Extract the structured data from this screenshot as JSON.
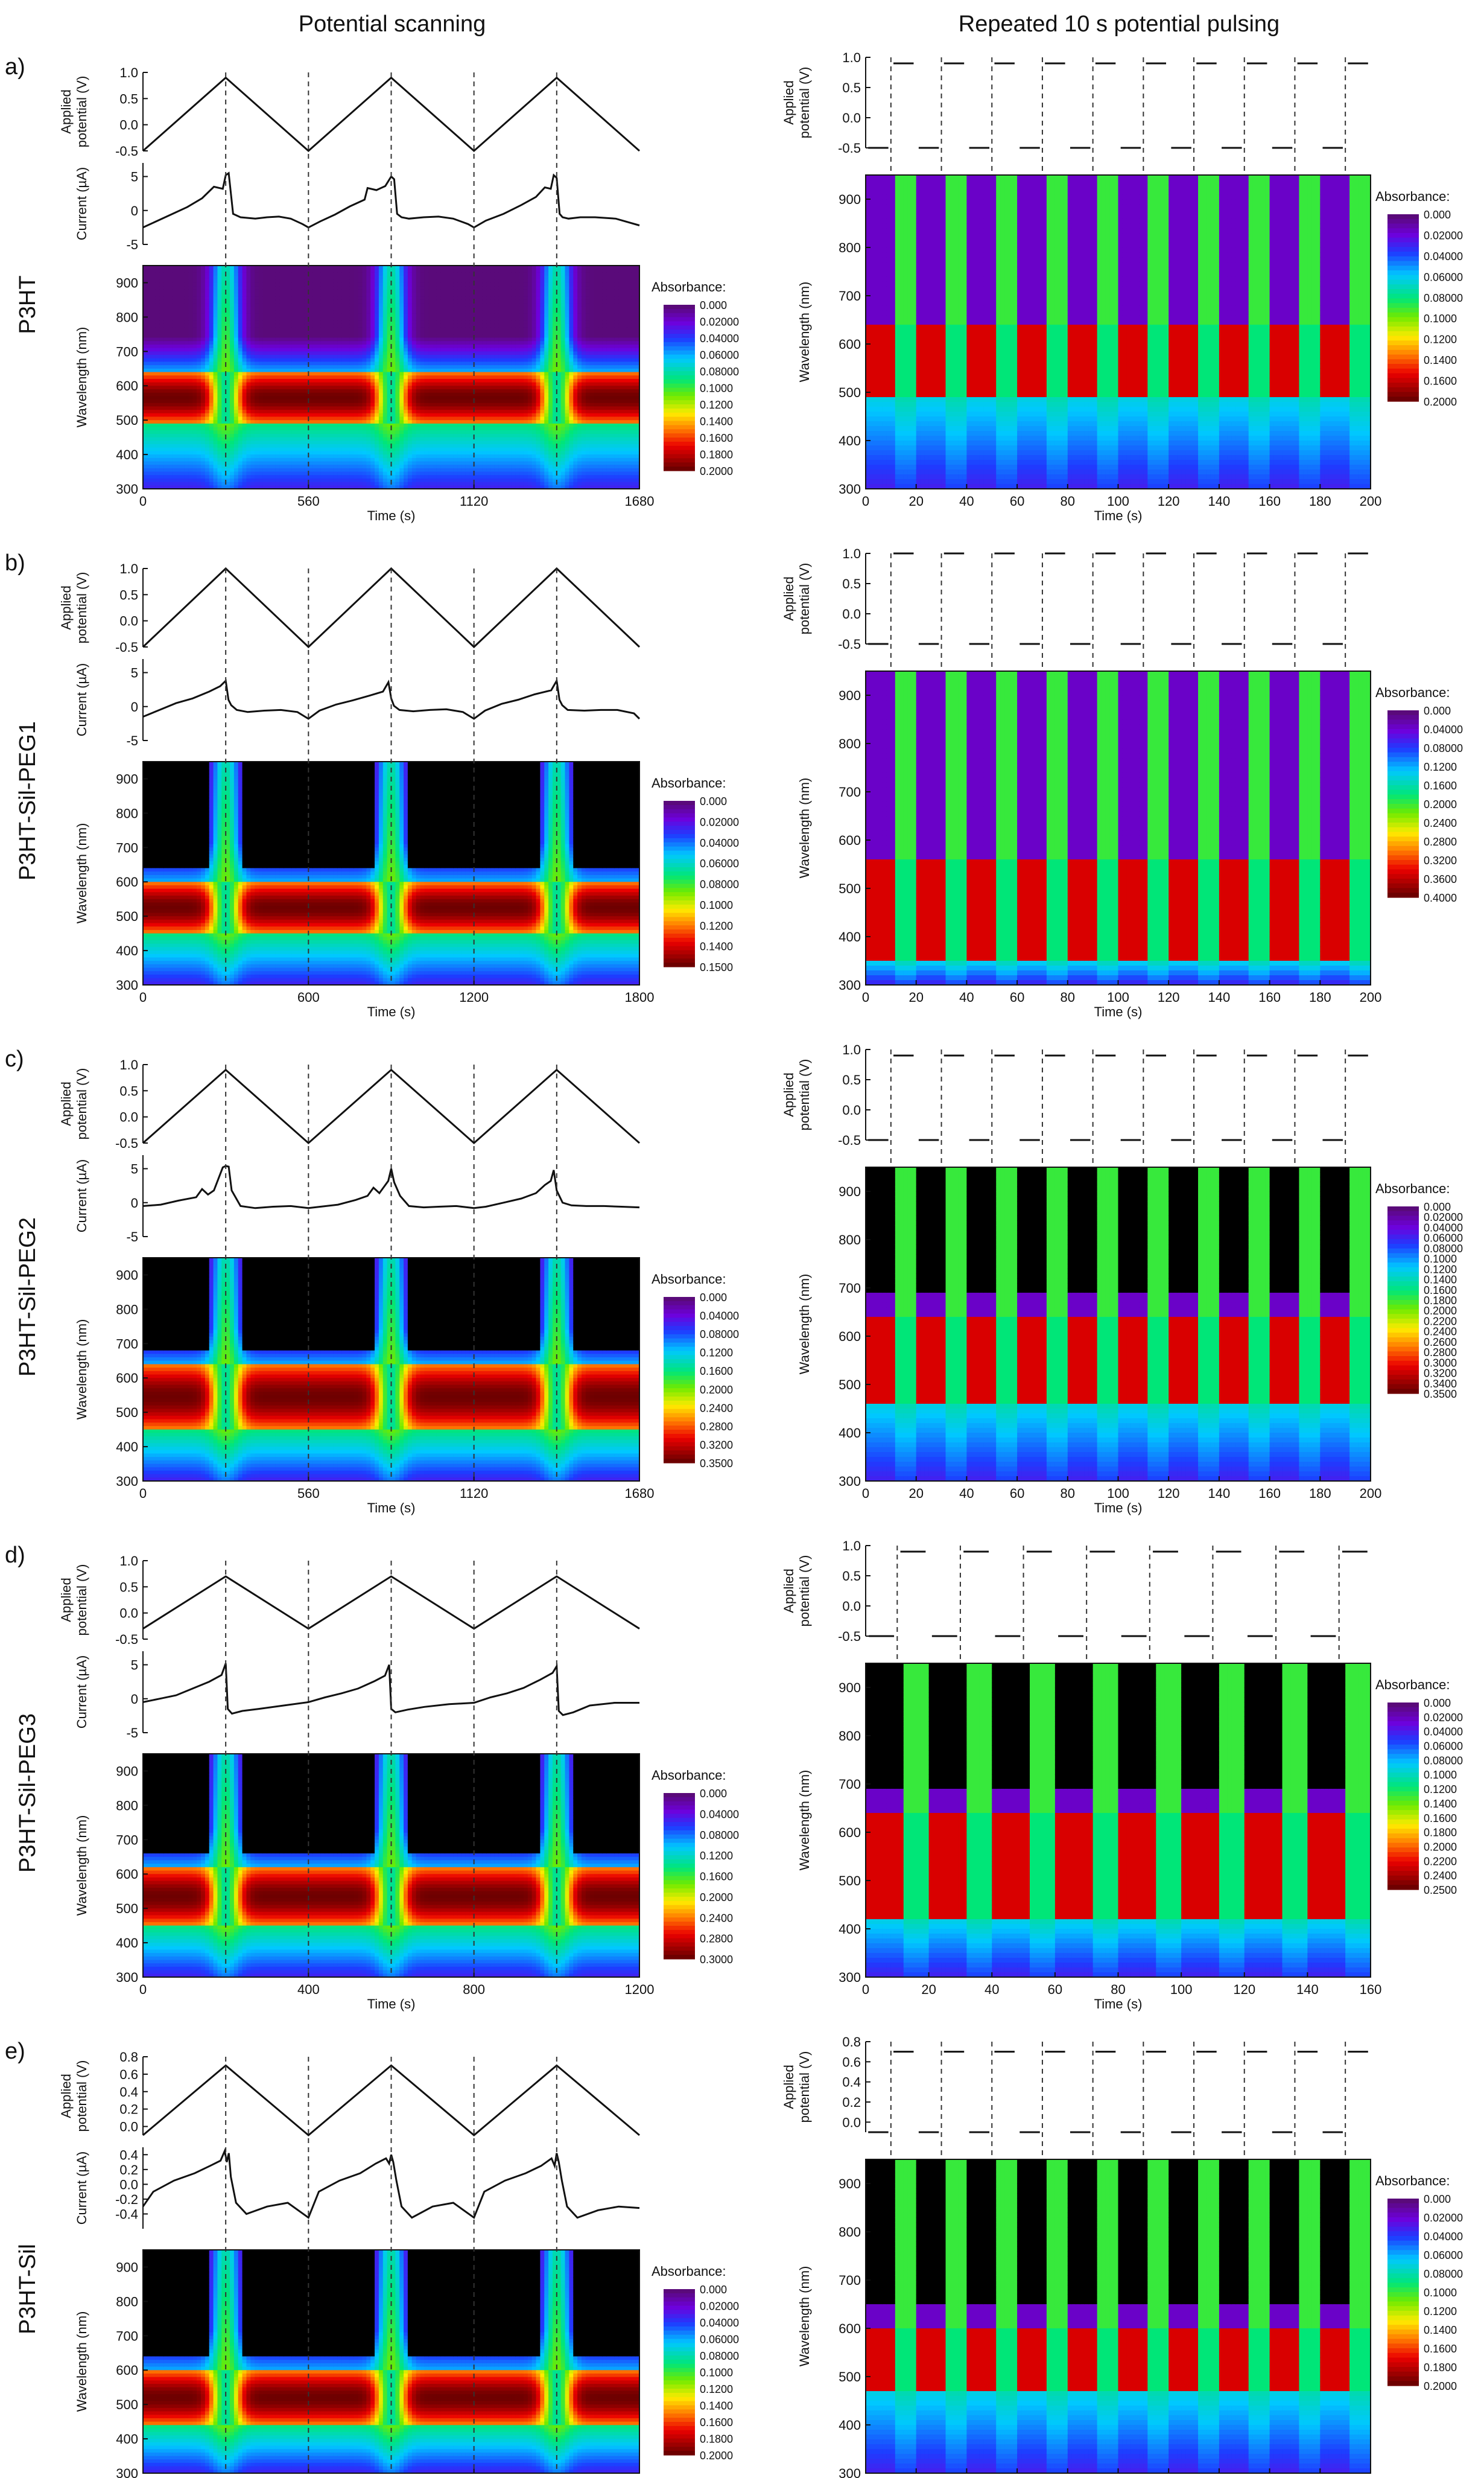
{
  "headers": {
    "left": "Potential scanning",
    "right": "Repeated 10 s potential pulsing"
  },
  "panels": [
    {
      "letter": "a)",
      "sample": "P3HT",
      "scan": {
        "t_max": 1680,
        "xticks": [
          0,
          560,
          1120,
          1680
        ],
        "v_min": -0.5,
        "v_max": 0.9,
        "v_ylim": [
          -0.5,
          1.0
        ],
        "v_yticks": [
          -0.5,
          0.0,
          0.5,
          1.0
        ],
        "i_ylim": [
          -5,
          7
        ],
        "i_yticks": [
          -5,
          0,
          5
        ],
        "current_trace": {
          "t": [
            0,
            50,
            100,
            150,
            200,
            240,
            270,
            280,
            290,
            305,
            330,
            380,
            420,
            460,
            500,
            540,
            560,
            600,
            650,
            700,
            750,
            760,
            790,
            820,
            840,
            850,
            860,
            875,
            900,
            950,
            1000,
            1050,
            1100,
            1120,
            1160,
            1220,
            1280,
            1330,
            1360,
            1380,
            1390,
            1400,
            1410,
            1420,
            1440,
            1480,
            1530,
            1600,
            1680
          ],
          "i": [
            -2.5,
            -1.5,
            -0.5,
            0.5,
            1.8,
            3.5,
            3.2,
            5.2,
            5.5,
            -0.5,
            -1.0,
            -1.2,
            -1.0,
            -0.9,
            -1.2,
            -2.0,
            -2.5,
            -1.6,
            -0.6,
            0.6,
            1.6,
            3.3,
            3.0,
            3.6,
            5.0,
            4.6,
            -0.5,
            -1.0,
            -1.2,
            -1.0,
            -0.9,
            -1.2,
            -2.0,
            -2.5,
            -1.5,
            -0.5,
            0.8,
            2.0,
            3.4,
            3.2,
            5.2,
            4.8,
            -0.5,
            -1.0,
            -1.2,
            -1.0,
            -1.0,
            -1.2,
            -2.2
          ]
        },
        "cb_max": 0.2,
        "cb_labels": [
          "0.000",
          "0.02000",
          "0.04000",
          "0.06000",
          "0.08000",
          "0.1000",
          "0.1200",
          "0.1400",
          "0.1600",
          "0.1800",
          "0.2000"
        ],
        "heatmap": {
          "bleach_band_nm": [
            490,
            640
          ],
          "blank_above": false
        }
      },
      "pulse": {
        "t_max": 200,
        "n_pulses": 10,
        "v_high": 0.9,
        "v_low": -0.5,
        "v_ylim": [
          -0.5,
          1.0
        ],
        "v_yticks": [
          -0.5,
          0.0,
          0.5,
          1.0
        ],
        "cb_max": 0.2,
        "cb_labels": [
          "0.000",
          "0.02000",
          "0.04000",
          "0.06000",
          "0.08000",
          "0.1000",
          "0.1200",
          "0.1400",
          "0.1600",
          "0.2000"
        ],
        "heatmap": {
          "bleach_band_nm": [
            490,
            640
          ],
          "blank_above": false
        }
      }
    },
    {
      "letter": "b)",
      "sample": "P3HT-Sil-PEG1",
      "scan": {
        "t_max": 1800,
        "xticks": [
          0,
          600,
          1200,
          1800
        ],
        "v_min": -0.5,
        "v_max": 1.0,
        "v_ylim": [
          -0.5,
          1.0
        ],
        "v_yticks": [
          -0.5,
          0.0,
          0.5,
          1.0
        ],
        "i_ylim": [
          -5,
          7
        ],
        "i_yticks": [
          -5,
          0,
          5
        ],
        "current_trace": {
          "t": [
            0,
            60,
            120,
            180,
            240,
            280,
            300,
            310,
            320,
            340,
            380,
            440,
            500,
            560,
            600,
            640,
            700,
            760,
            820,
            870,
            890,
            900,
            910,
            930,
            980,
            1040,
            1100,
            1160,
            1200,
            1240,
            1300,
            1360,
            1420,
            1480,
            1500,
            1510,
            1520,
            1540,
            1600,
            1660,
            1720,
            1780,
            1800
          ],
          "i": [
            -1.5,
            -0.5,
            0.5,
            1.2,
            2.2,
            3.0,
            3.8,
            1.0,
            0.2,
            -0.5,
            -0.8,
            -0.6,
            -0.5,
            -0.8,
            -1.8,
            -0.6,
            0.3,
            0.9,
            1.6,
            2.2,
            3.6,
            1.2,
            0.1,
            -0.5,
            -0.7,
            -0.5,
            -0.4,
            -0.8,
            -1.8,
            -0.6,
            0.4,
            1.0,
            1.8,
            2.4,
            3.8,
            1.0,
            0.2,
            -0.5,
            -0.6,
            -0.5,
            -0.5,
            -1.0,
            -1.8
          ]
        },
        "cb_max": 0.15,
        "cb_labels": [
          "0.000",
          "0.02000",
          "0.04000",
          "0.06000",
          "0.08000",
          "0.1000",
          "0.1200",
          "0.1400",
          "0.1500"
        ],
        "heatmap": {
          "bleach_band_nm": [
            450,
            600
          ],
          "blank_above": true
        }
      },
      "pulse": {
        "t_max": 200,
        "n_pulses": 10,
        "v_high": 1.0,
        "v_low": -0.5,
        "v_ylim": [
          -0.5,
          1.0
        ],
        "v_yticks": [
          -0.5,
          0.0,
          0.5,
          1.0
        ],
        "cb_max": 0.4,
        "cb_labels": [
          "0.000",
          "0.04000",
          "0.08000",
          "0.1200",
          "0.1600",
          "0.2000",
          "0.2400",
          "0.2800",
          "0.3200",
          "0.3600",
          "0.4000"
        ],
        "heatmap": {
          "bleach_band_nm": [
            350,
            560
          ],
          "blank_above": false
        }
      }
    },
    {
      "letter": "c)",
      "sample": "P3HT-Sil-PEG2",
      "scan": {
        "t_max": 1680,
        "xticks": [
          0,
          560,
          1120,
          1680
        ],
        "v_min": -0.5,
        "v_max": 0.9,
        "v_ylim": [
          -0.5,
          1.0
        ],
        "v_yticks": [
          -0.5,
          0.0,
          0.5,
          1.0
        ],
        "i_ylim": [
          -5,
          7
        ],
        "i_yticks": [
          -5,
          0,
          5
        ],
        "current_trace": {
          "t": [
            0,
            60,
            120,
            180,
            200,
            220,
            240,
            270,
            280,
            290,
            300,
            330,
            380,
            440,
            500,
            560,
            600,
            660,
            720,
            760,
            780,
            800,
            830,
            840,
            850,
            870,
            900,
            950,
            1000,
            1060,
            1120,
            1160,
            1220,
            1280,
            1330,
            1360,
            1380,
            1390,
            1400,
            1420,
            1450,
            1500,
            1560,
            1620,
            1680
          ],
          "i": [
            -0.5,
            -0.3,
            0.3,
            0.8,
            2.0,
            1.2,
            1.8,
            5.2,
            5.4,
            5.3,
            1.8,
            -0.5,
            -0.8,
            -0.6,
            -0.5,
            -0.8,
            -0.6,
            -0.3,
            0.4,
            1.0,
            2.2,
            1.4,
            3.2,
            5.0,
            3.0,
            1.0,
            -0.5,
            -0.7,
            -0.6,
            -0.5,
            -0.8,
            -0.6,
            0.0,
            0.6,
            1.4,
            2.6,
            3.2,
            4.8,
            1.8,
            0.0,
            -0.4,
            -0.5,
            -0.5,
            -0.6,
            -0.7
          ]
        },
        "cb_max": 0.35,
        "cb_labels": [
          "0.000",
          "0.04000",
          "0.08000",
          "0.1200",
          "0.1600",
          "0.2000",
          "0.2400",
          "0.2800",
          "0.3200",
          "0.3500"
        ],
        "heatmap": {
          "bleach_band_nm": [
            450,
            640
          ],
          "blank_above": true
        }
      },
      "pulse": {
        "t_max": 200,
        "n_pulses": 10,
        "v_high": 0.9,
        "v_low": -0.5,
        "v_ylim": [
          -0.5,
          1.0
        ],
        "v_yticks": [
          -0.5,
          0.0,
          0.5,
          1.0
        ],
        "cb_max": 0.35,
        "cb_labels": [
          "0.000",
          "0.02000",
          "0.04000",
          "0.06000",
          "0.08000",
          "0.1000",
          "0.1200",
          "0.1400",
          "0.1600",
          "0.1800",
          "0.2000",
          "0.2200",
          "0.2400",
          "0.2600",
          "0.2800",
          "0.3000",
          "0.3200",
          "0.3400",
          "0.3500"
        ],
        "heatmap": {
          "bleach_band_nm": [
            460,
            640
          ],
          "blank_above": true
        }
      }
    },
    {
      "letter": "d)",
      "sample": "P3HT-Sil-PEG3",
      "scan": {
        "t_max": 1200,
        "xticks": [
          0,
          400,
          800,
          1200
        ],
        "v_min": -0.3,
        "v_max": 0.7,
        "v_ylim": [
          -0.5,
          1.0
        ],
        "v_yticks": [
          -0.5,
          0.0,
          0.5,
          1.0
        ],
        "i_ylim": [
          -5,
          7
        ],
        "i_yticks": [
          -5,
          0,
          5
        ],
        "current_trace": {
          "t": [
            0,
            40,
            80,
            120,
            160,
            190,
            200,
            205,
            215,
            240,
            280,
            340,
            400,
            440,
            480,
            520,
            560,
            585,
            595,
            600,
            610,
            640,
            680,
            740,
            800,
            840,
            880,
            920,
            960,
            990,
            1000,
            1005,
            1015,
            1040,
            1080,
            1140,
            1200
          ],
          "i": [
            -0.5,
            0.0,
            0.5,
            1.5,
            2.5,
            3.5,
            5.2,
            -1.5,
            -2.2,
            -1.8,
            -1.5,
            -1.0,
            -0.5,
            0.2,
            0.8,
            1.5,
            2.6,
            3.4,
            5.0,
            -1.5,
            -2.0,
            -1.6,
            -1.2,
            -0.8,
            -0.6,
            0.2,
            0.8,
            1.6,
            2.8,
            3.8,
            4.8,
            -1.8,
            -2.4,
            -2.0,
            -1.0,
            -0.6,
            -0.6
          ]
        },
        "cb_max": 0.3,
        "cb_labels": [
          "0.000",
          "0.04000",
          "0.08000",
          "0.1200",
          "0.1600",
          "0.2000",
          "0.2400",
          "0.2800",
          "0.3000"
        ],
        "heatmap": {
          "bleach_band_nm": [
            450,
            620
          ],
          "blank_above": true
        }
      },
      "pulse": {
        "t_max": 160,
        "n_pulses": 8,
        "v_high": 0.9,
        "v_low": -0.5,
        "v_ylim": [
          -0.5,
          1.0
        ],
        "v_yticks": [
          -0.5,
          0.0,
          0.5,
          1.0
        ],
        "cb_max": 0.25,
        "cb_labels": [
          "0.000",
          "0.02000",
          "0.04000",
          "0.06000",
          "0.08000",
          "0.1000",
          "0.1200",
          "0.1400",
          "0.1600",
          "0.1800",
          "0.2000",
          "0.2200",
          "0.2400",
          "0.2500"
        ],
        "heatmap": {
          "bleach_band_nm": [
            420,
            640
          ],
          "blank_above": true
        }
      }
    },
    {
      "letter": "e)",
      "sample": "P3HT-Sil",
      "scan": {
        "t_max": 960,
        "xticks": [
          0,
          320,
          640,
          960
        ],
        "v_min": -0.1,
        "v_max": 0.7,
        "v_ylim": [
          -0.1,
          0.8
        ],
        "v_yticks": [
          0.0,
          0.2,
          0.4,
          0.6,
          0.8
        ],
        "i_ylim": [
          -0.6,
          0.5
        ],
        "i_yticks": [
          -0.4,
          -0.2,
          0.0,
          0.2,
          0.4
        ],
        "current_trace": {
          "t": [
            0,
            20,
            60,
            100,
            130,
            150,
            158,
            162,
            166,
            170,
            180,
            200,
            240,
            280,
            320,
            340,
            380,
            420,
            450,
            470,
            476,
            480,
            484,
            490,
            500,
            520,
            560,
            600,
            640,
            660,
            700,
            740,
            770,
            790,
            796,
            800,
            804,
            810,
            820,
            840,
            880,
            920,
            960
          ],
          "i": [
            -0.3,
            -0.1,
            0.05,
            0.15,
            0.25,
            0.32,
            0.45,
            0.3,
            0.42,
            0.1,
            -0.25,
            -0.4,
            -0.3,
            -0.25,
            -0.45,
            -0.1,
            0.05,
            0.15,
            0.28,
            0.35,
            0.28,
            0.4,
            0.3,
            0.05,
            -0.3,
            -0.45,
            -0.3,
            -0.25,
            -0.45,
            -0.1,
            0.05,
            0.15,
            0.25,
            0.35,
            0.25,
            0.42,
            0.3,
            0.05,
            -0.3,
            -0.45,
            -0.35,
            -0.3,
            -0.32
          ]
        },
        "cb_max": 0.2,
        "cb_labels": [
          "0.000",
          "0.02000",
          "0.04000",
          "0.06000",
          "0.08000",
          "0.1000",
          "0.1200",
          "0.1400",
          "0.1600",
          "0.1800",
          "0.2000"
        ],
        "heatmap": {
          "bleach_band_nm": [
            440,
            600
          ],
          "blank_above": true
        }
      },
      "pulse": {
        "t_max": 200,
        "n_pulses": 10,
        "v_high": 0.7,
        "v_low": -0.1,
        "v_ylim": [
          -0.1,
          0.8
        ],
        "v_yticks": [
          0.0,
          0.2,
          0.4,
          0.6,
          0.8
        ],
        "cb_max": 0.2,
        "cb_labels": [
          "0.000",
          "0.02000",
          "0.04000",
          "0.06000",
          "0.08000",
          "0.1000",
          "0.1200",
          "0.1400",
          "0.1600",
          "0.1800",
          "0.2000"
        ],
        "heatmap": {
          "bleach_band_nm": [
            470,
            600
          ],
          "blank_above": true
        }
      }
    }
  ],
  "axes": {
    "applied_label": [
      "Applied",
      "potential (V)"
    ],
    "current_label": "Current (µA)",
    "wavelength_label": "Wavelength (nm)",
    "time_label": "Time (s)",
    "colorbar_title": "Absorbance:",
    "wavelength_range": [
      300,
      950
    ],
    "wavelength_ticks": [
      300,
      400,
      500,
      600,
      700,
      800,
      900
    ],
    "pulse_xticks": [
      0,
      20,
      40,
      60,
      80,
      100,
      120,
      140,
      160,
      180,
      200
    ],
    "pulse_xticks_d": [
      0,
      20,
      40,
      60,
      80,
      100,
      120,
      140,
      160
    ]
  },
  "chart_data": {
    "type": "heatmap",
    "x": "Time (s)",
    "y": "Wavelength (nm)",
    "colorbar": "Absorbance:",
    "series": [
      {
        "name": "P3HT",
        "scan_x_range": [
          0,
          1680
        ],
        "pulse_x_range": [
          0,
          200
        ],
        "y_range": [
          300,
          950
        ]
      },
      {
        "name": "P3HT-Sil-PEG1",
        "scan_x_range": [
          0,
          1800
        ],
        "pulse_x_range": [
          0,
          200
        ],
        "y_range": [
          300,
          950
        ]
      },
      {
        "name": "P3HT-Sil-PEG2",
        "scan_x_range": [
          0,
          1680
        ],
        "pulse_x_range": [
          0,
          200
        ],
        "y_range": [
          300,
          950
        ]
      },
      {
        "name": "P3HT-Sil-PEG3",
        "scan_x_range": [
          0,
          1200
        ],
        "pulse_x_range": [
          0,
          160
        ],
        "y_range": [
          300,
          950
        ]
      },
      {
        "name": "P3HT-Sil",
        "scan_x_range": [
          0,
          960
        ],
        "pulse_x_range": [
          0,
          200
        ],
        "y_range": [
          300,
          950
        ]
      }
    ]
  },
  "colors": {
    "jet_top": "#5a0a7a",
    "blank": "#000000",
    "line": "#111111",
    "dash": "#333333"
  }
}
